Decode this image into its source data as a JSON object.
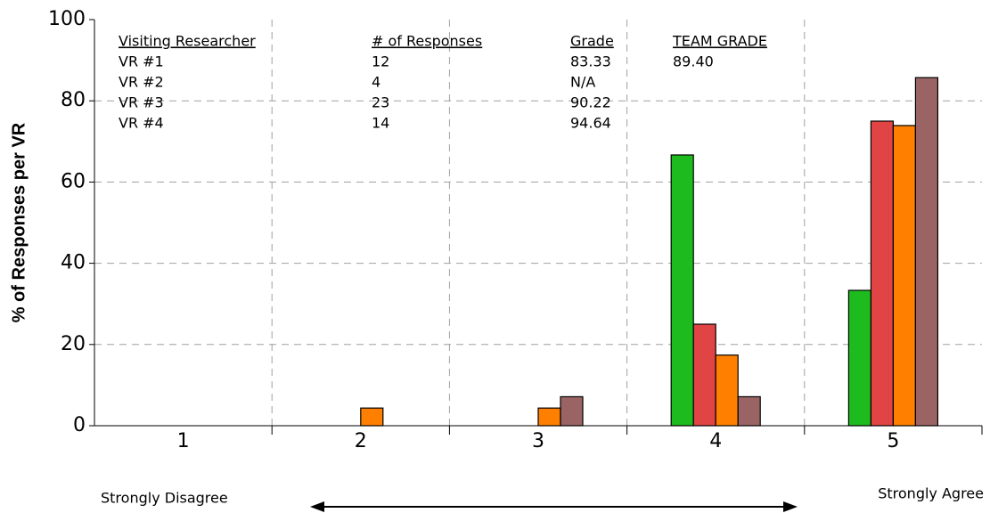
{
  "chart_data": {
    "type": "bar",
    "y_label": "% of Responses per VR",
    "categories": [
      "1",
      "2",
      "3",
      "4",
      "5"
    ],
    "series": [
      {
        "name": "VR #1",
        "color": "#1dbb1d",
        "values": [
          0,
          0,
          0,
          66.67,
          33.33
        ]
      },
      {
        "name": "VR #2",
        "color": "#e04444",
        "values": [
          0,
          0,
          0,
          25,
          75
        ]
      },
      {
        "name": "VR #3",
        "color": "#ff8000",
        "values": [
          0,
          4.35,
          4.35,
          17.39,
          73.91
        ]
      },
      {
        "name": "VR #4",
        "color": "#9a6464",
        "values": [
          0,
          0,
          7.14,
          7.14,
          85.71
        ]
      }
    ],
    "ylim": [
      0,
      100
    ],
    "yticks": [
      0,
      20,
      40,
      60,
      80,
      100
    ],
    "grid": true,
    "scale_labels": [
      "Strongly Disagree",
      "Strongly Agree"
    ],
    "table": {
      "columns": [
        "Visiting Researcher",
        "# of Responses",
        "Grade",
        "TEAM GRADE"
      ],
      "rows": [
        [
          "12",
          "83.33",
          "89.40"
        ],
        [
          "4",
          "N/A"
        ],
        [
          "23",
          "90.22"
        ],
        [
          "14",
          "94.64"
        ]
      ]
    }
  }
}
